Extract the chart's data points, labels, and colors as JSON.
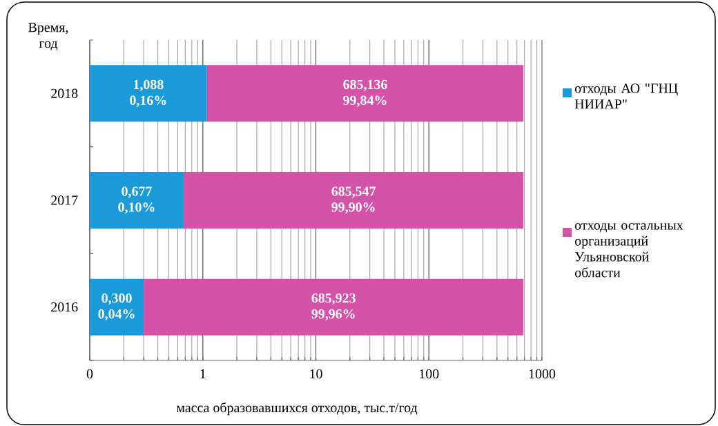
{
  "chart_data": {
    "type": "bar",
    "orientation": "horizontal",
    "stacked": true,
    "log": "x",
    "grid": "x",
    "legend": "right",
    "xlabel": "масса образовавшихся отходов, тыс.т/год",
    "ylabel": "Время, год",
    "categories": [
      "2018",
      "2017",
      "2016"
    ],
    "xlim": [
      0.1,
      1000
    ],
    "xticks": [
      {
        "value": 0.1,
        "label": "0"
      },
      1,
      10,
      100,
      1000
    ],
    "series": [
      {
        "name": "отходы АО \"ГНЦ НИИАР\"",
        "color": "#1a9ad8",
        "values": [
          1.088,
          0.677,
          0.3
        ],
        "value_labels": [
          "1,088 0,16%",
          "0,677 0,10%",
          "0,300 0,04%"
        ]
      },
      {
        "name": "отходы остальных организаций Ульяновской области",
        "color": "#d452a8",
        "values": [
          685.136,
          685.547,
          685.923
        ],
        "value_labels": [
          "685,136 99,84%",
          "685,547 99,90%",
          "685,923 99,96%"
        ]
      }
    ]
  }
}
